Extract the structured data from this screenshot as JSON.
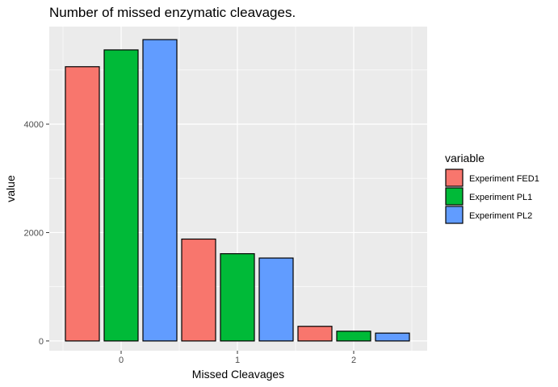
{
  "chart_data": {
    "type": "bar",
    "title": "Number of missed enzymatic cleavages.",
    "xlabel": "Missed Cleavages",
    "ylabel": "value",
    "categories": [
      "0",
      "1",
      "2"
    ],
    "yticks": [
      "0",
      "2000",
      "4000"
    ],
    "ylim": [
      -180,
      5800
    ],
    "grid": true,
    "legend": {
      "title": "variable",
      "position": "right"
    },
    "series": [
      {
        "name": "Experiment FED1",
        "color": "#F8766D",
        "values": [
          5060,
          1880,
          270
        ]
      },
      {
        "name": "Experiment PL1",
        "color": "#00BA38",
        "values": [
          5370,
          1610,
          180
        ]
      },
      {
        "name": "Experiment PL2",
        "color": "#619CFF",
        "values": [
          5560,
          1530,
          145
        ]
      }
    ]
  }
}
